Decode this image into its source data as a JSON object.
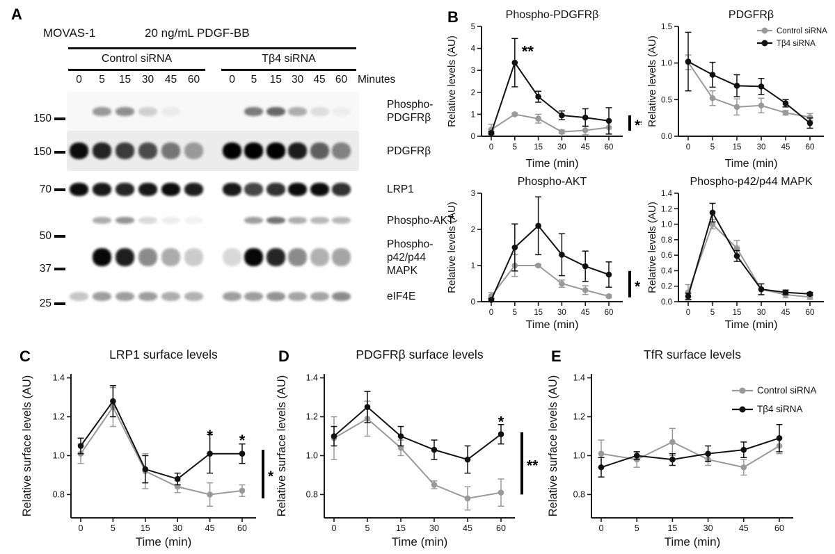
{
  "figure": {
    "panels": [
      "A",
      "B",
      "C",
      "D",
      "E"
    ]
  },
  "colors": {
    "control": "#999999",
    "tb4": "#111111",
    "axis": "#1a1a1a"
  },
  "panel_a": {
    "cell_line": "MOVAS-1",
    "treatment": "20 ng/mL PDGF-BB",
    "groups": [
      "Control siRNA",
      "Tβ4 siRNA"
    ],
    "timepoints": [
      "0",
      "5",
      "15",
      "30",
      "45",
      "60"
    ],
    "time_unit": "Minutes",
    "rows": [
      {
        "label": [
          "Phospho-",
          "PDGFRβ"
        ],
        "marker": "150",
        "control": [
          0,
          0.38,
          0.42,
          0.16,
          0.05,
          0
        ],
        "tb4": [
          0,
          0.5,
          0.58,
          0.3,
          0.1,
          0.04
        ]
      },
      {
        "label": [
          "PDGFRβ"
        ],
        "marker": "150",
        "control": [
          0.95,
          0.85,
          0.75,
          0.68,
          0.5,
          0.35
        ],
        "tb4": [
          1,
          1,
          1,
          0.88,
          0.6,
          0.45
        ]
      },
      {
        "label": [
          "LRP1"
        ],
        "marker": "70",
        "control": [
          0.95,
          0.9,
          0.85,
          0.9,
          0.95,
          0.88
        ],
        "tb4": [
          0.9,
          0.72,
          0.8,
          0.95,
          0.95,
          0.8
        ]
      },
      {
        "label": [
          "Phospho-AKT"
        ],
        "marker": "50",
        "control": [
          0,
          0.32,
          0.42,
          0.15,
          0.07,
          0.05
        ],
        "tb4": [
          0,
          0.38,
          0.55,
          0.32,
          0.28,
          0.28
        ]
      },
      {
        "label": [
          "Phospho-",
          "p42/p44",
          "MAPK"
        ],
        "marker": "37",
        "control": [
          0,
          0.97,
          0.88,
          0.45,
          0.32,
          0.2
        ],
        "tb4": [
          0.15,
          0.97,
          0.85,
          0.45,
          0.3,
          0.35
        ]
      },
      {
        "label": [
          "eIF4E"
        ],
        "marker": "25",
        "control": [
          0.22,
          0.38,
          0.38,
          0.38,
          0.32,
          0.3
        ],
        "tb4": [
          0.38,
          0.38,
          0.42,
          0.35,
          0.35,
          0.45
        ]
      }
    ]
  },
  "chart_data": [
    {
      "id": "phospho-pdgfrb",
      "panel": "B",
      "type": "line",
      "title": "Phospho-PDGFRβ",
      "xlabel": "Time (min)",
      "ylabel": "Relative levels (AU)",
      "x": [
        "0",
        "5",
        "15",
        "30",
        "45",
        "60"
      ],
      "ylim": [
        0,
        5
      ],
      "yticks": [
        0,
        1,
        2,
        3,
        4,
        5
      ],
      "legend": false,
      "series": [
        {
          "name": "Control siRNA",
          "color_key": "control",
          "values": [
            0.3,
            1.0,
            0.8,
            0.2,
            0.27,
            0.4
          ],
          "errors": [
            0.25,
            0.06,
            0.2,
            0.08,
            0.2,
            0.3
          ]
        },
        {
          "name": "Tβ4 siRNA",
          "color_key": "tb4",
          "values": [
            0.15,
            3.35,
            1.8,
            0.95,
            0.85,
            0.7
          ],
          "errors": [
            0.05,
            1.1,
            0.25,
            0.2,
            0.4,
            0.6
          ]
        }
      ],
      "annotations": [
        {
          "text": "**",
          "xi": 1.55,
          "y": 4.0
        },
        {
          "text": "**",
          "bracket": true,
          "y1": 0.95,
          "y2": 0.25
        }
      ]
    },
    {
      "id": "pdgfrb",
      "panel": "B",
      "type": "line",
      "title": "PDGFRβ",
      "xlabel": "Time (min)",
      "ylabel": "Relative levels (AU)",
      "x": [
        "0",
        "5",
        "15",
        "30",
        "45",
        "60"
      ],
      "ylim": [
        0,
        1.5
      ],
      "yticks": [
        0,
        0.5,
        1.0,
        1.5
      ],
      "legend": true,
      "series": [
        {
          "name": "Control siRNA",
          "color_key": "control",
          "values": [
            1.01,
            0.52,
            0.4,
            0.42,
            0.32,
            0.26
          ],
          "errors": [
            0.1,
            0.1,
            0.11,
            0.1,
            0.03,
            0.05
          ]
        },
        {
          "name": "Tβ4 siRNA",
          "color_key": "tb4",
          "values": [
            1.02,
            0.84,
            0.69,
            0.68,
            0.45,
            0.18
          ],
          "errors": [
            0.4,
            0.17,
            0.15,
            0.11,
            0.05,
            0.07
          ]
        }
      ],
      "annotations": []
    },
    {
      "id": "phospho-akt",
      "panel": "B",
      "type": "line",
      "title": "Phospho-AKT",
      "xlabel": "Time (min)",
      "ylabel": "Relative levels (AU)",
      "x": [
        "0",
        "5",
        "15",
        "30",
        "45",
        "60"
      ],
      "ylim": [
        0,
        3
      ],
      "yticks": [
        0,
        1,
        2,
        3
      ],
      "legend": false,
      "series": [
        {
          "name": "Control siRNA",
          "color_key": "control",
          "values": [
            0.15,
            1.0,
            1.0,
            0.5,
            0.32,
            0.15
          ],
          "errors": [
            0.1,
            0.3,
            0.03,
            0.1,
            0.12,
            0.04
          ]
        },
        {
          "name": "Tβ4 siRNA",
          "color_key": "tb4",
          "values": [
            0.05,
            1.5,
            2.1,
            1.3,
            0.98,
            0.75
          ],
          "errors": [
            0.04,
            0.65,
            0.8,
            0.58,
            0.42,
            0.35
          ]
        }
      ],
      "annotations": [
        {
          "text": "*",
          "bracket": true,
          "y1": 0.85,
          "y2": 0.12
        }
      ]
    },
    {
      "id": "phospho-p42-p44-mapk",
      "panel": "B",
      "type": "line",
      "title": "Phospho-p42/p44 MAPK",
      "xlabel": "Time (min)",
      "ylabel": "Relative levels (AU)",
      "x": [
        "0",
        "5",
        "15",
        "30",
        "45",
        "60"
      ],
      "ylim": [
        0,
        1.4
      ],
      "yticks": [
        0,
        0.2,
        0.4,
        0.6,
        0.8,
        1.0,
        1.2,
        1.4
      ],
      "legend": false,
      "series": [
        {
          "name": "Control siRNA",
          "color_key": "control",
          "values": [
            0.12,
            1.0,
            0.69,
            0.16,
            0.09,
            0.06
          ],
          "errors": [
            0.1,
            0.06,
            0.1,
            0.07,
            0.04,
            0.03
          ]
        },
        {
          "name": "Tβ4 siRNA",
          "color_key": "tb4",
          "values": [
            0.07,
            1.15,
            0.59,
            0.16,
            0.12,
            0.1
          ],
          "errors": [
            0.04,
            0.12,
            0.07,
            0.07,
            0.03,
            0.02
          ]
        }
      ],
      "annotations": []
    },
    {
      "id": "lrp1-surface",
      "panel": "C",
      "type": "line",
      "title": "LRP1 surface levels",
      "xlabel": "Time (min)",
      "ylabel": "Relative surface levels (AU)",
      "x": [
        "0",
        "5",
        "15",
        "30",
        "45",
        "60"
      ],
      "ylim": [
        0.68,
        1.42
      ],
      "yticks": [
        0.8,
        1.0,
        1.2,
        1.4
      ],
      "legend": false,
      "series": [
        {
          "name": "Control siRNA",
          "color_key": "control",
          "values": [
            1.01,
            1.25,
            0.92,
            0.84,
            0.8,
            0.82
          ],
          "errors": [
            0.05,
            0.1,
            0.09,
            0.03,
            0.06,
            0.03
          ]
        },
        {
          "name": "Tβ4 siRNA",
          "color_key": "tb4",
          "values": [
            1.05,
            1.28,
            0.93,
            0.88,
            1.01,
            1.01
          ],
          "errors": [
            0.04,
            0.08,
            0.07,
            0.03,
            0.1,
            0.05
          ]
        }
      ],
      "annotations": [
        {
          "text": "*",
          "xi": 4,
          "y": 1.12
        },
        {
          "text": "*",
          "xi": 5,
          "y": 1.095
        },
        {
          "text": "*",
          "bracket": true,
          "y1": 1.03,
          "y2": 0.78
        }
      ]
    },
    {
      "id": "pdgfrb-surface",
      "panel": "D",
      "type": "line",
      "title": "PDGFRβ surface levels",
      "xlabel": "Time (min)",
      "ylabel": "Relative surface levels (AU)",
      "x": [
        "0",
        "5",
        "15",
        "30",
        "45",
        "60"
      ],
      "ylim": [
        0.68,
        1.42
      ],
      "yticks": [
        0.8,
        1.0,
        1.2,
        1.4
      ],
      "legend": false,
      "series": [
        {
          "name": "Control siRNA",
          "color_key": "control",
          "values": [
            1.09,
            1.19,
            1.04,
            0.85,
            0.78,
            0.81
          ],
          "errors": [
            0.11,
            0.09,
            0.04,
            0.02,
            0.06,
            0.07
          ]
        },
        {
          "name": "Tβ4 siRNA",
          "color_key": "tb4",
          "values": [
            1.1,
            1.25,
            1.1,
            1.03,
            0.98,
            1.11
          ],
          "errors": [
            0.05,
            0.08,
            0.05,
            0.05,
            0.07,
            0.05
          ]
        }
      ],
      "annotations": [
        {
          "text": "*",
          "xi": 5,
          "y": 1.19
        },
        {
          "text": "**",
          "bracket": true,
          "y1": 1.12,
          "y2": 0.8
        }
      ]
    },
    {
      "id": "tfr-surface",
      "panel": "E",
      "type": "line",
      "title": "TfR surface levels",
      "xlabel": "Time (min)",
      "ylabel": "Relative surface levels (AU)",
      "x": [
        "0",
        "5",
        "15",
        "30",
        "45",
        "60"
      ],
      "ylim": [
        0.68,
        1.42
      ],
      "yticks": [
        0.8,
        1.0,
        1.2,
        1.4
      ],
      "legend": true,
      "series": [
        {
          "name": "Control siRNA",
          "color_key": "control",
          "values": [
            1.01,
            0.98,
            1.07,
            0.98,
            0.94,
            1.05
          ],
          "errors": [
            0.07,
            0.04,
            0.07,
            0.03,
            0.04,
            0.04
          ]
        },
        {
          "name": "Tβ4 siRNA",
          "color_key": "tb4",
          "values": [
            0.94,
            1.0,
            0.98,
            1.01,
            1.03,
            1.09
          ],
          "errors": [
            0.05,
            0.02,
            0.03,
            0.04,
            0.04,
            0.07
          ]
        }
      ],
      "annotations": []
    }
  ]
}
